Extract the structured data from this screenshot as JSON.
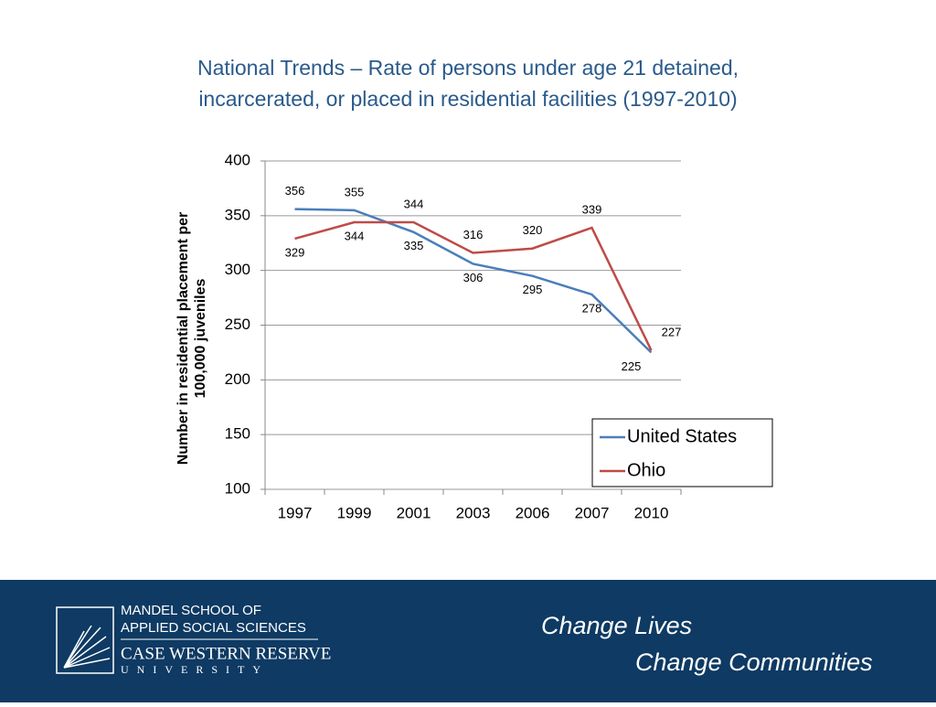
{
  "chart_data": {
    "type": "line",
    "title": "National Trends – Rate of persons under age 21 detained, incarcerated, or placed in residential facilities (1997-2010)",
    "y_label": "Number in residential placement per 100,000 juveniles",
    "categories": [
      "1997",
      "1999",
      "2001",
      "2003",
      "2006",
      "2007",
      "2010"
    ],
    "series": [
      {
        "name": "United States",
        "color": "#4a7ebb",
        "values": [
          356,
          355,
          335,
          306,
          295,
          278,
          225
        ]
      },
      {
        "name": "Ohio",
        "color": "#be4b48",
        "values": [
          329,
          344,
          344,
          316,
          320,
          339,
          227
        ]
      }
    ],
    "ylim": [
      100,
      400
    ],
    "yticks": [
      100,
      150,
      200,
      250,
      300,
      350,
      400
    ],
    "grid": true,
    "legend": "lower right",
    "data_labels": true
  },
  "footer": {
    "school": [
      "MANDEL SCHOOL OF",
      "APPLIED SOCIAL SCIENCES"
    ],
    "university": "CASE WESTERN RESERVE",
    "university_sub": "UNIVERSITY",
    "slogan": [
      "Change Lives",
      "Change Communities"
    ]
  }
}
